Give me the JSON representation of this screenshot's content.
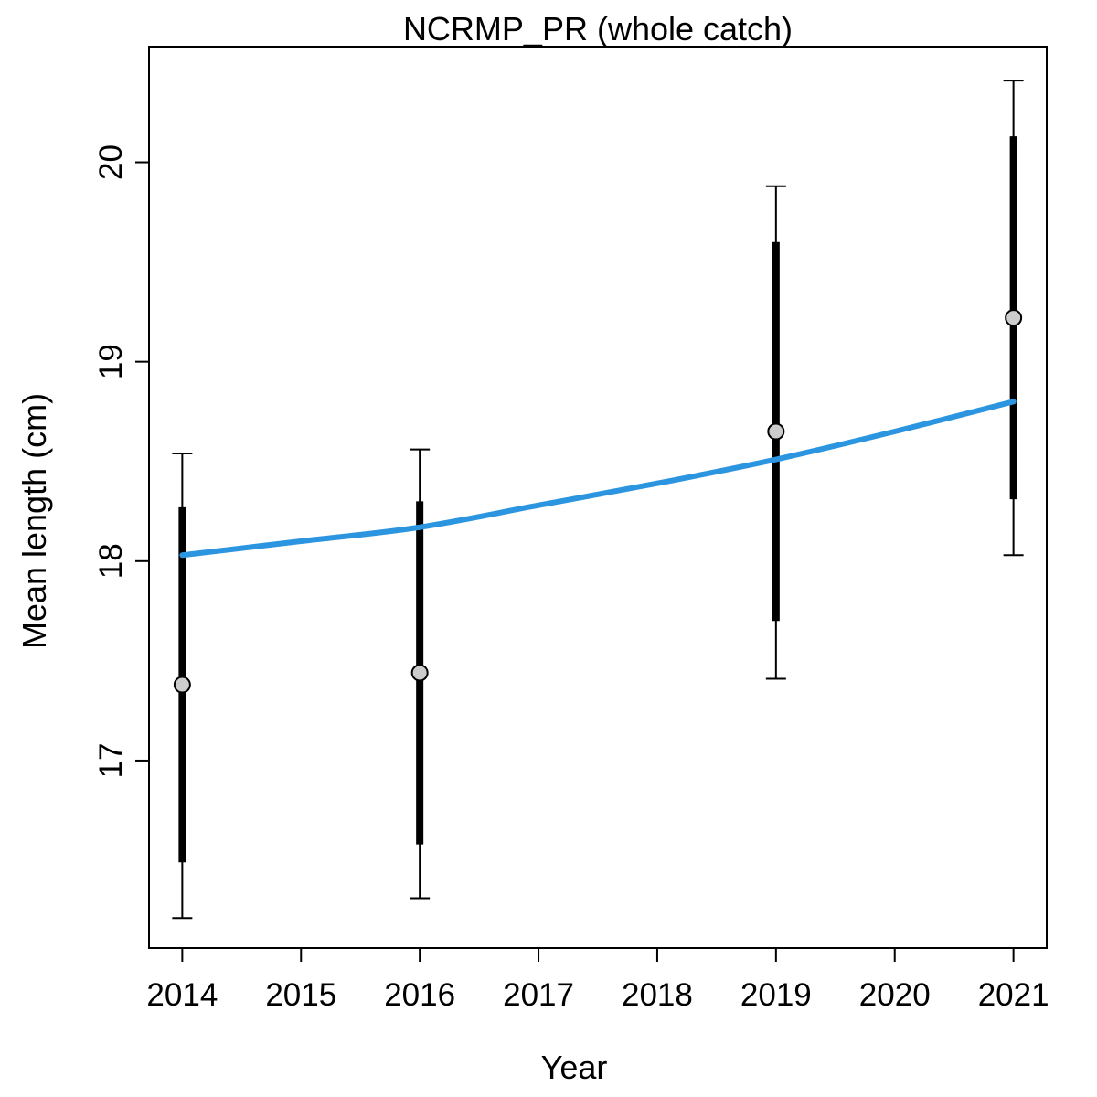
{
  "chart_data": {
    "type": "line",
    "title": "NCRMP_PR (whole catch)",
    "xlabel": "Year",
    "ylabel": "Mean length (cm)",
    "xlim": [
      2013.72,
      2021.28
    ],
    "ylim": [
      16.06,
      20.58
    ],
    "x_ticks": [
      2014,
      2015,
      2016,
      2017,
      2018,
      2019,
      2020,
      2021
    ],
    "y_ticks": [
      17,
      18,
      19,
      20
    ],
    "grid": false,
    "legend": "none",
    "colors": {
      "fit_line": "#2b95e0",
      "observed_point_fill": "#cccccc",
      "interval": "#000000"
    },
    "observed": [
      {
        "year": 2014,
        "mean": 17.38,
        "inner_low": 16.49,
        "inner_high": 18.27,
        "outer_low": 16.21,
        "outer_high": 18.54
      },
      {
        "year": 2016,
        "mean": 17.44,
        "inner_low": 16.58,
        "inner_high": 18.3,
        "outer_low": 16.31,
        "outer_high": 18.56
      },
      {
        "year": 2019,
        "mean": 18.65,
        "inner_low": 17.7,
        "inner_high": 19.6,
        "outer_low": 17.41,
        "outer_high": 19.88
      },
      {
        "year": 2021,
        "mean": 19.22,
        "inner_low": 18.31,
        "inner_high": 20.13,
        "outer_low": 18.03,
        "outer_high": 20.41
      }
    ],
    "expected": {
      "x": [
        2014,
        2015,
        2016,
        2017,
        2018,
        2019,
        2020,
        2021
      ],
      "y": [
        18.03,
        18.1,
        18.17,
        18.28,
        18.39,
        18.51,
        18.65,
        18.8
      ]
    }
  }
}
